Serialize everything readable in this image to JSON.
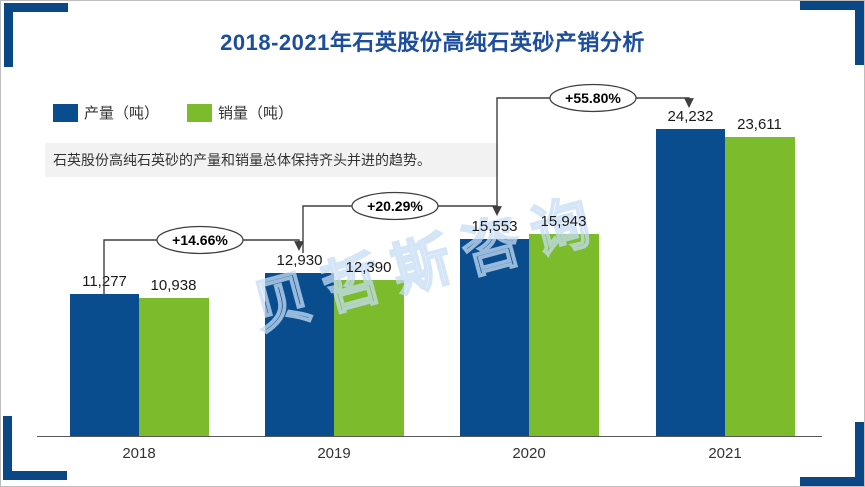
{
  "title": "2018-2021年石英股份高纯石英砂产销分析",
  "description": "石英股份高纯石英砂的产量和销量总体保持齐头并进的趋势。",
  "watermark": "贝哲斯咨询",
  "colors": {
    "title_blue": "#1c4e9d",
    "production_blue": "#0a4d8e",
    "sales_green": "#7cbb2b",
    "corner_accent": "#0c4785",
    "description_bg": "#f2f2f2",
    "watermark_blue": "#c6ddf5"
  },
  "chart_data": {
    "type": "bar",
    "title": "2018-2021年石英股份高纯石英砂产销分析",
    "categories": [
      "2018",
      "2019",
      "2020",
      "2021"
    ],
    "series": [
      {
        "name": "产量（吨）",
        "color": "#0a4d8e",
        "values": [
          11277,
          12930,
          15553,
          24232
        ]
      },
      {
        "name": "销量（吨）",
        "color": "#7cbb2b",
        "values": [
          10938,
          12390,
          15943,
          23611
        ]
      }
    ],
    "annotations": [
      {
        "label": "+14.66%",
        "from": "2018",
        "to": "2019"
      },
      {
        "label": "+20.29%",
        "from": "2019",
        "to": "2020"
      },
      {
        "label": "+55.80%",
        "from": "2020",
        "to": "2021"
      }
    ],
    "value_labels": "thousands-comma",
    "ylim": [
      0,
      24232
    ],
    "grid": false,
    "legend_position": "top-left"
  }
}
